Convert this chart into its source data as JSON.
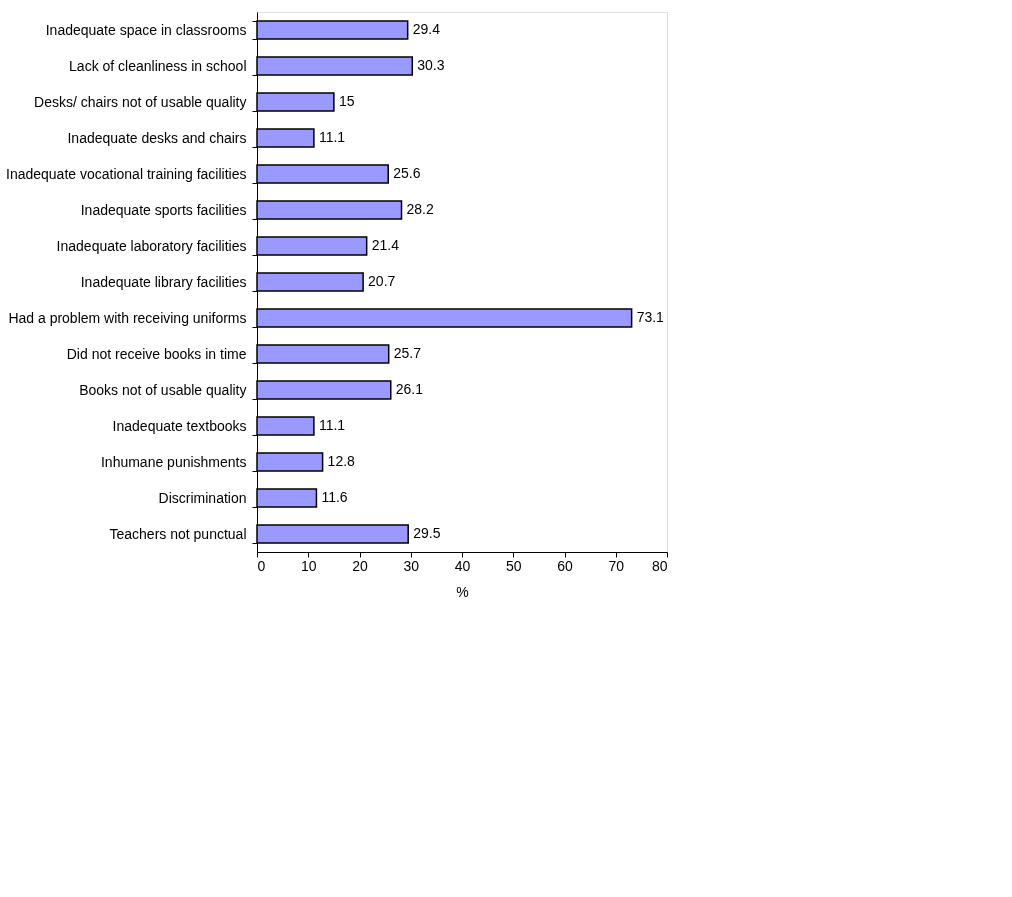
{
  "chart_data": {
    "type": "bar",
    "orientation": "horizontal",
    "xlabel": "%",
    "categories": [
      "Inadequate space in classrooms",
      "Lack of cleanliness in school",
      "Desks/ chairs not of usable quality",
      "Inadequate desks and chairs",
      "Inadequate vocational training facilities",
      "Inadequate sports facilities",
      "Inadequate laboratory facilities",
      "Inadequate library facilities",
      "Had a problem with receiving uniforms",
      "Did not receive books in time",
      "Books not of usable quality",
      "Inadequate textbooks",
      "Inhumane punishments",
      "Discrimination",
      "Teachers not punctual"
    ],
    "values": [
      29.4,
      30.3,
      15,
      11.1,
      25.6,
      28.2,
      21.4,
      20.7,
      73.1,
      25.7,
      26.1,
      11.1,
      12.8,
      11.6,
      29.5
    ],
    "color": "#9999ff",
    "xlim": [
      0,
      80
    ],
    "xticks": [
      0,
      10,
      20,
      30,
      40,
      50,
      60,
      70,
      80
    ],
    "grid": false,
    "data_labels": true
  }
}
